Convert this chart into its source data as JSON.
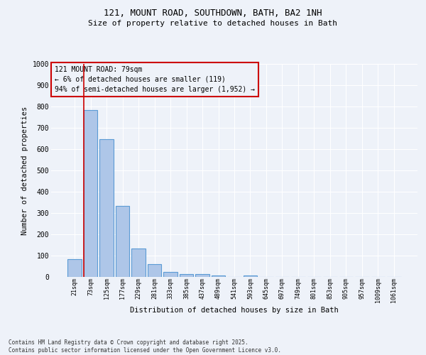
{
  "title_line1": "121, MOUNT ROAD, SOUTHDOWN, BATH, BA2 1NH",
  "title_line2": "Size of property relative to detached houses in Bath",
  "xlabel": "Distribution of detached houses by size in Bath",
  "ylabel": "Number of detached properties",
  "categories": [
    "21sqm",
    "73sqm",
    "125sqm",
    "177sqm",
    "229sqm",
    "281sqm",
    "333sqm",
    "385sqm",
    "437sqm",
    "489sqm",
    "541sqm",
    "593sqm",
    "645sqm",
    "697sqm",
    "749sqm",
    "801sqm",
    "853sqm",
    "905sqm",
    "957sqm",
    "1009sqm",
    "1061sqm"
  ],
  "values": [
    82,
    785,
    648,
    335,
    135,
    60,
    22,
    15,
    13,
    7,
    0,
    8,
    0,
    0,
    0,
    0,
    0,
    0,
    0,
    0,
    0
  ],
  "bar_color": "#aec6e8",
  "bar_edge_color": "#5b9bd5",
  "vline_x_index": 0.575,
  "annotation_title": "121 MOUNT ROAD: 79sqm",
  "annotation_line2": "← 6% of detached houses are smaller (119)",
  "annotation_line3": "94% of semi-detached houses are larger (1,952) →",
  "annotation_box_color": "#cc0000",
  "vline_color": "#cc0000",
  "background_color": "#eef2f9",
  "grid_color": "#ffffff",
  "ylim": [
    0,
    1000
  ],
  "yticks": [
    0,
    100,
    200,
    300,
    400,
    500,
    600,
    700,
    800,
    900,
    1000
  ],
  "footnote_line1": "Contains HM Land Registry data © Crown copyright and database right 2025.",
  "footnote_line2": "Contains public sector information licensed under the Open Government Licence v3.0."
}
